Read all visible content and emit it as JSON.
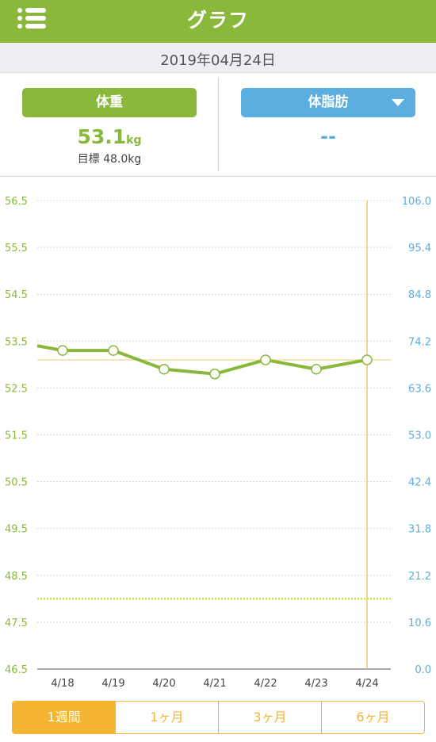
{
  "header": {
    "title": "グラフ",
    "menu_icon": "hamburger-menu-icon"
  },
  "date": "2019年04月24日",
  "weight": {
    "label": "体重",
    "value": "53.1",
    "unit": "kg",
    "goal": "目標 48.0kg"
  },
  "body_fat": {
    "label": "体脂肪",
    "value": "--",
    "dropdown_icon": "caret-down-icon"
  },
  "colors": {
    "weight": "#8ab83b",
    "body_fat": "#5aaee0",
    "accent": "#f5b431",
    "goal": "#cfe04a"
  },
  "chart_data": {
    "type": "line",
    "categories": [
      "4/18",
      "4/19",
      "4/20",
      "4/21",
      "4/22",
      "4/23",
      "4/24"
    ],
    "series": [
      {
        "values": [
          53.3,
          53.3,
          52.9,
          52.8,
          53.1,
          52.9,
          53.1
        ],
        "leading_value": 53.4
      }
    ],
    "left_axis": {
      "ticks": [
        "56.5",
        "55.5",
        "54.5",
        "53.5",
        "52.5",
        "51.5",
        "50.5",
        "49.5",
        "48.5",
        "47.5",
        "46.5"
      ],
      "ylim": [
        46.5,
        56.5
      ]
    },
    "right_axis": {
      "ticks": [
        "106.0",
        "95.4",
        "84.8",
        "74.2",
        "63.6",
        "53.0",
        "42.4",
        "31.8",
        "21.2",
        "10.6",
        "0.0"
      ],
      "ylim": [
        0.0,
        106.0
      ]
    },
    "goal_line": 48.0,
    "current_value_line": 53.1,
    "selected_category": "4/24",
    "grid": true
  },
  "tabs": [
    {
      "label": "1週間",
      "active": true
    },
    {
      "label": "1ヶ月",
      "active": false
    },
    {
      "label": "3ヶ月",
      "active": false
    },
    {
      "label": "6ヶ月",
      "active": false
    }
  ]
}
